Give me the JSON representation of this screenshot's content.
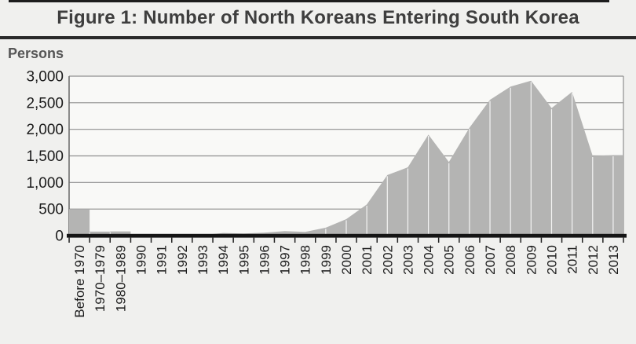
{
  "figure": {
    "title": "Figure 1: Number of North Koreans Entering South Korea",
    "y_axis_title": "Persons"
  },
  "chart_data": {
    "type": "area",
    "title": "Figure 1: Number of North Koreans Entering South Korea",
    "xlabel": "",
    "ylabel": "Persons",
    "categories": [
      "Before 1970",
      "1970–1979",
      "1980–1989",
      "1990",
      "1991",
      "1992",
      "1993",
      "1994",
      "1995",
      "1996",
      "1997",
      "1998",
      "1999",
      "2000",
      "2001",
      "2002",
      "2003",
      "2004",
      "2005",
      "2006",
      "2007",
      "2008",
      "2009",
      "2010",
      "2011",
      "2012",
      "2013"
    ],
    "values": [
      500,
      75,
      80,
      10,
      10,
      10,
      10,
      50,
      40,
      55,
      85,
      70,
      150,
      310,
      585,
      1140,
      1285,
      1900,
      1385,
      2030,
      2555,
      2805,
      2915,
      2400,
      2705,
      1500,
      1515
    ],
    "ylim": [
      0,
      3000
    ],
    "ytick_interval": 500,
    "ytick_labels": [
      "0",
      "500",
      "1,000",
      "1,500",
      "2,000",
      "2,500",
      "3,000"
    ],
    "grid": "horizontal",
    "legend": "none",
    "step_rendered_categories": 3,
    "colors": {
      "area_fill": "#b4b4b3",
      "plot_background": "#f9f9f7",
      "page_background": "#f0f0ee",
      "gridline": "#8f8f8f",
      "x_axis_line": "#151515",
      "drop_line": "#ffffff",
      "text_dark": "#1a1a1a",
      "title_color": "#3e3e3e"
    }
  }
}
